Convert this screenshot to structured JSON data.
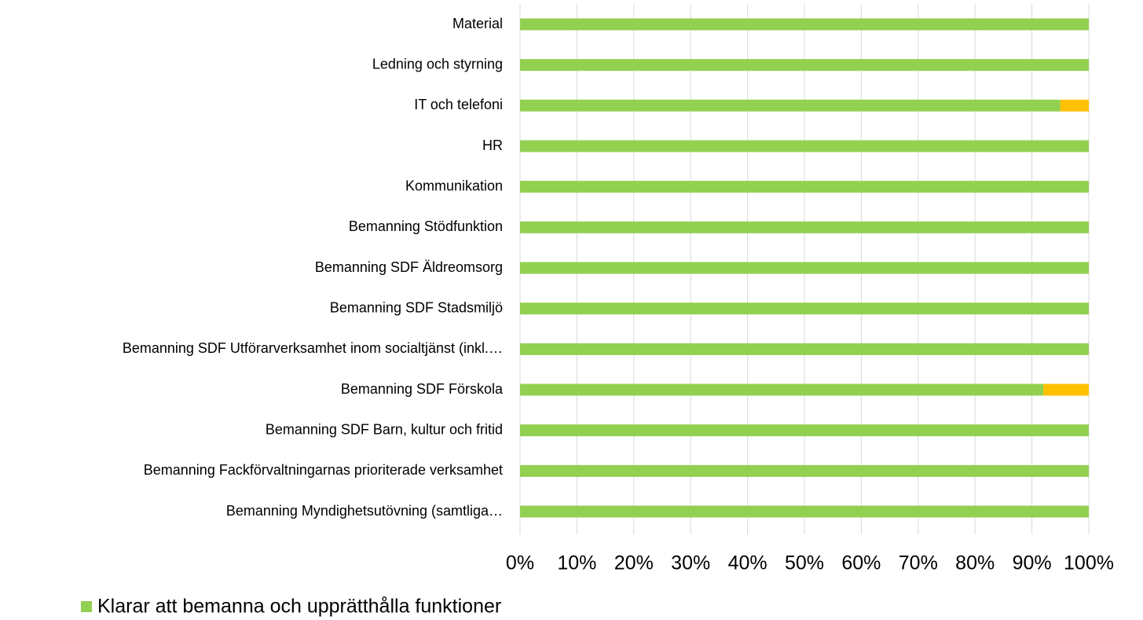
{
  "chart_data": {
    "type": "stacked_barh",
    "categories": [
      "Material",
      "Ledning och styrning",
      "IT och telefoni",
      "HR",
      "Kommunikation",
      "Bemanning Stödfunktion",
      "Bemanning SDF Äldreomsorg",
      "Bemanning SDF Stadsmiljö",
      "Bemanning SDF Utförarverksamhet inom socialtjänst (inkl.…",
      "Bemanning SDF Förskola",
      "Bemanning SDF Barn, kultur och fritid",
      "Bemanning Fackförvaltningarnas prioriterade verksamhet",
      "Bemanning Myndighetsutövning (samtliga…"
    ],
    "series": [
      {
        "name": "Klarar att bemanna och upprätthålla funktioner",
        "color": "#92d050",
        "values": [
          100,
          100,
          95,
          100,
          100,
          100,
          100,
          100,
          100,
          92,
          100,
          100,
          100
        ]
      },
      {
        "color": "#ffc000",
        "values": [
          0,
          0,
          5,
          0,
          0,
          0,
          0,
          0,
          0,
          8,
          0,
          0,
          0
        ]
      }
    ],
    "xlim": [
      0,
      100
    ],
    "xticks": [
      {
        "value": 0,
        "label": "0%"
      },
      {
        "value": 10,
        "label": "10%"
      },
      {
        "value": 20,
        "label": "20%"
      },
      {
        "value": 30,
        "label": "30%"
      },
      {
        "value": 40,
        "label": "40%"
      },
      {
        "value": 50,
        "label": "50%"
      },
      {
        "value": 60,
        "label": "60%"
      },
      {
        "value": 70,
        "label": "70%"
      },
      {
        "value": 80,
        "label": "80%"
      },
      {
        "value": 90,
        "label": "90%"
      },
      {
        "value": 100,
        "label": "100%"
      }
    ],
    "grid": true,
    "legend": "bottom-left"
  }
}
